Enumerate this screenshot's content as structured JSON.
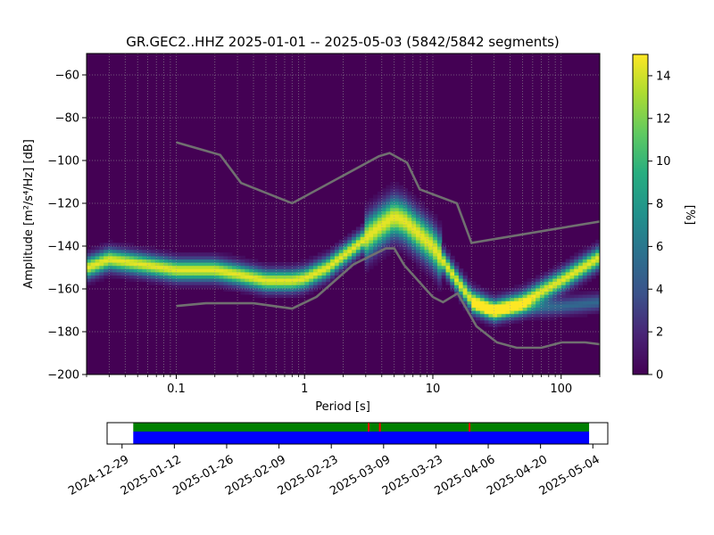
{
  "chart_data": [
    {
      "type": "heatmap",
      "title": "GR.GEC2..HHZ   2025-01-01 -- 2025-05-03  (5842/5842 segments)",
      "xlabel": "Period [s]",
      "ylabel": "Amplitude [m²/s⁴/Hz] [dB]",
      "x_scale": "log",
      "xlim": [
        0.02,
        200
      ],
      "ylim": [
        -200,
        -50
      ],
      "x_ticks": [
        0.1,
        1,
        10,
        100
      ],
      "x_tick_labels": [
        "0.1",
        "1",
        "10",
        "100"
      ],
      "y_ticks": [
        -60,
        -80,
        -100,
        -120,
        -140,
        -160,
        -180,
        -200
      ],
      "y_tick_labels": [
        "−60",
        "−80",
        "−100",
        "−120",
        "−140",
        "−160",
        "−180",
        "−200"
      ],
      "grid": true,
      "colormap": "viridis",
      "colorbar": {
        "label": "[%]",
        "range": [
          0,
          15
        ],
        "ticks": [
          0,
          2,
          4,
          6,
          8,
          10,
          12,
          14
        ],
        "tick_labels": [
          "0",
          "2",
          "4",
          "6",
          "8",
          "10",
          "12",
          "14"
        ]
      },
      "mode_curve": {
        "periods": [
          0.02,
          0.03,
          0.05,
          0.1,
          0.2,
          0.3,
          0.5,
          0.8,
          1.0,
          1.5,
          2.5,
          4.0,
          5.0,
          6.0,
          10,
          15,
          20,
          30,
          50,
          100,
          200
        ],
        "db": [
          -150,
          -146,
          -148,
          -151,
          -151,
          -153,
          -156,
          -156,
          -155,
          -150,
          -140,
          -130,
          -126,
          -128,
          -140,
          -155,
          -165,
          -170,
          -166,
          -156,
          -145
        ]
      },
      "secondary_branch": {
        "periods": [
          20,
          30,
          50,
          100,
          200
        ],
        "db": [
          -168,
          -170,
          -169,
          -168,
          -166
        ]
      },
      "noise_model_high": {
        "color": "#707070",
        "periods": [
          0.1,
          0.22,
          0.32,
          0.8,
          3.8,
          4.6,
          6.3,
          7.9,
          15.4,
          20,
          354.8
        ],
        "db": [
          -91.5,
          -97.4,
          -110.5,
          -120,
          -98,
          -96.5,
          -101,
          -113.5,
          -120,
          -138.5,
          -126
        ]
      },
      "noise_model_low": {
        "color": "#707070",
        "periods": [
          0.1,
          0.17,
          0.4,
          0.8,
          1.24,
          2.4,
          4.3,
          5.0,
          6.0,
          10,
          12,
          15.6,
          21.9,
          31.6,
          45,
          70,
          101,
          154,
          328
        ],
        "db": [
          -168,
          -166.7,
          -166.7,
          -169.2,
          -163.7,
          -148.6,
          -141.1,
          -141.1,
          -149,
          -163.8,
          -166.2,
          -162.1,
          -177.5,
          -185,
          -187.5,
          -187.5,
          -185,
          -185,
          -187.5
        ]
      }
    },
    {
      "type": "timeline",
      "x_tick_labels": [
        "2024-12-29",
        "2025-01-12",
        "2025-01-26",
        "2025-02-09",
        "2025-02-23",
        "2025-03-09",
        "2025-03-23",
        "2025-04-06",
        "2025-04-20",
        "2025-05-04"
      ],
      "xlim": [
        "2024-12-25",
        "2025-05-08"
      ],
      "data_range": [
        "2025-01-01",
        "2025-05-03"
      ],
      "colors": {
        "coverage_top": "#008000",
        "coverage_bottom": "#0000ff",
        "gap": "#ff0000"
      },
      "gap_dates": [
        "2025-03-05",
        "2025-03-08",
        "2025-04-01"
      ]
    }
  ]
}
